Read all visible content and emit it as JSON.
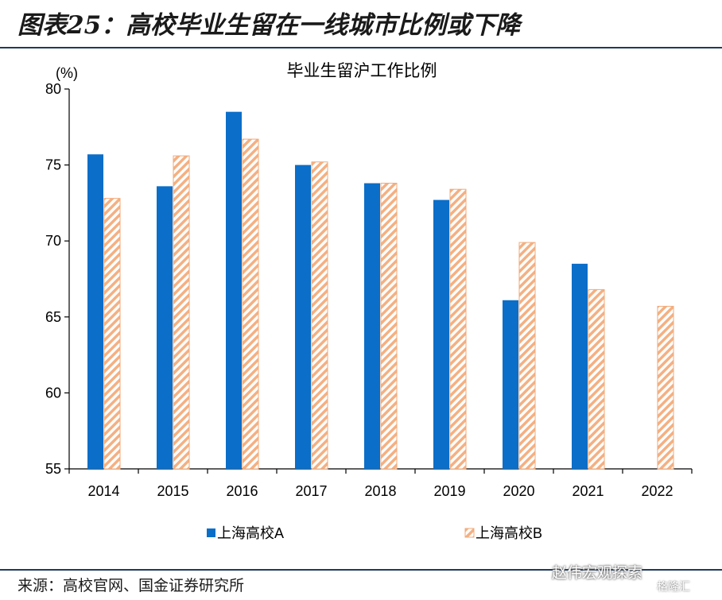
{
  "header": {
    "title": "图表25：高校毕业生留在一线城市比例或下降"
  },
  "footer": {
    "source": "来源：高校官网、国金证券研究所",
    "brand": "赵伟宏观探索",
    "brand2": "格隆汇"
  },
  "colors": {
    "series_a": "#0b6ec9",
    "series_b_stroke": "#f2a977",
    "series_b_stripe": "#f4b082",
    "rule": "#1f3b5c"
  },
  "chart_data": {
    "type": "bar",
    "title": "毕业生留沪工作比例",
    "ylabel": "(%)",
    "xlabel": "",
    "ylim": [
      55,
      80
    ],
    "yticks": [
      55,
      60,
      65,
      70,
      75,
      80
    ],
    "categories": [
      "2014",
      "2015",
      "2016",
      "2017",
      "2018",
      "2019",
      "2020",
      "2021",
      "2022"
    ],
    "series": [
      {
        "name": "上海高校A",
        "values": [
          75.7,
          73.6,
          78.5,
          75.0,
          73.8,
          72.7,
          66.1,
          68.5,
          null
        ]
      },
      {
        "name": "上海高校B",
        "values": [
          72.8,
          75.6,
          76.7,
          75.2,
          73.8,
          73.4,
          69.9,
          66.8,
          65.7
        ]
      }
    ],
    "legend_position": "bottom",
    "grid": false
  }
}
